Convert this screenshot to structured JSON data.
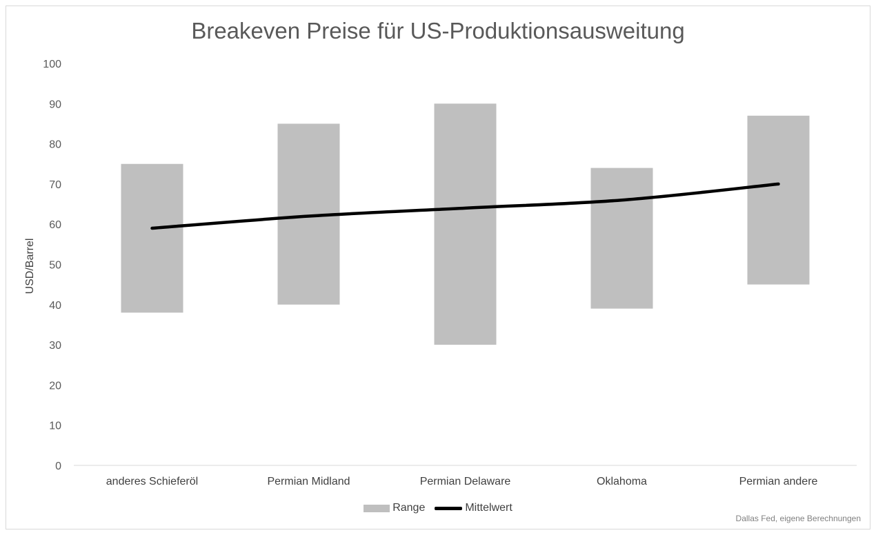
{
  "chart_data": {
    "type": "bar",
    "title": "Breakeven Preise für US-Produktionsausweitung",
    "ylabel": "USD/Barrel",
    "xlabel": "",
    "ylim": [
      0,
      100
    ],
    "yticks": [
      0,
      10,
      20,
      30,
      40,
      50,
      60,
      70,
      80,
      90,
      100
    ],
    "categories": [
      "anderes Schieferöl",
      "Permian Midland",
      "Permian Delaware",
      "Oklahoma",
      "Permian andere"
    ],
    "series": [
      {
        "name": "Range",
        "type": "floating-bar",
        "low": [
          38,
          40,
          30,
          39,
          45
        ],
        "high": [
          75,
          85,
          90,
          74,
          87
        ],
        "color": "#bfbfbf"
      },
      {
        "name": "Mittelwert",
        "type": "line",
        "values": [
          59,
          62,
          64,
          66,
          70
        ],
        "color": "#000000"
      }
    ],
    "grid": false,
    "legend_position": "bottom",
    "source": "Dallas Fed, eigene Berechnungen"
  }
}
